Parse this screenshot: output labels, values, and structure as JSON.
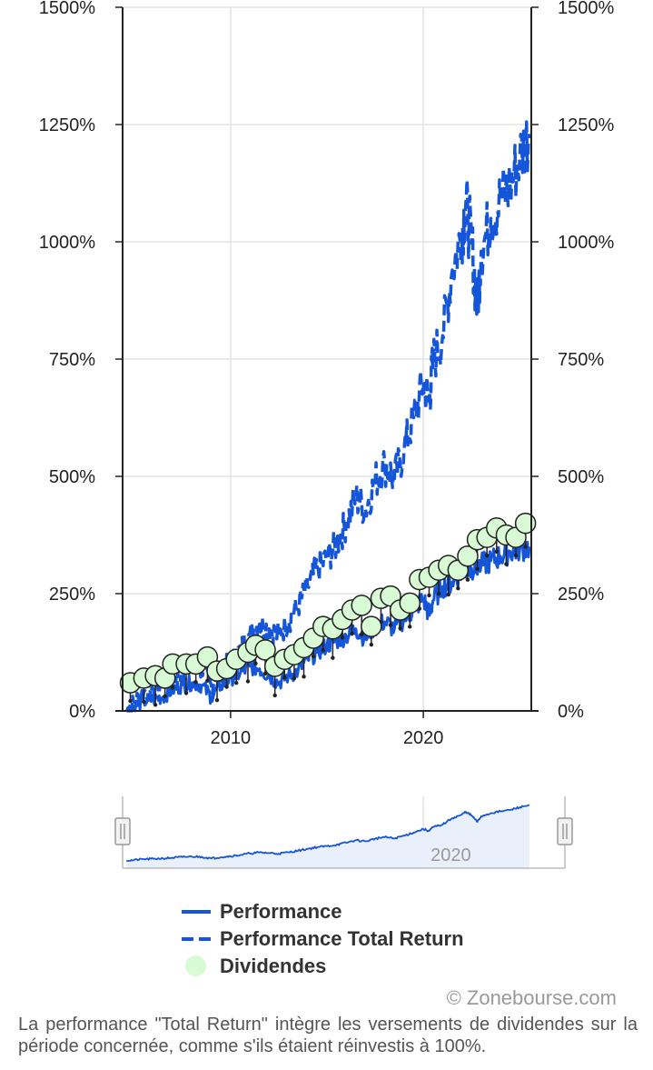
{
  "chart_data": {
    "type": "line",
    "x_ticks": [
      "2010",
      "2020"
    ],
    "y_ticks": [
      "0%",
      "250%",
      "500%",
      "750%",
      "1000%",
      "1250%",
      "1500%"
    ],
    "ylim": [
      0,
      1500
    ],
    "xlim": [
      2004.4,
      2025.6
    ],
    "grid": true,
    "legend_position": "bottom",
    "series": [
      {
        "name": "Performance",
        "style": "solid",
        "color": "#1455d9",
        "x": [
          2004.6,
          2005.0,
          2005.5,
          2006.0,
          2006.5,
          2007.0,
          2007.5,
          2008.0,
          2008.5,
          2009.0,
          2009.5,
          2010.0,
          2010.5,
          2011.0,
          2011.5,
          2012.0,
          2012.5,
          2013.0,
          2013.5,
          2014.0,
          2014.5,
          2015.0,
          2015.5,
          2016.0,
          2016.5,
          2017.0,
          2017.5,
          2018.0,
          2018.5,
          2019.0,
          2019.5,
          2020.0,
          2020.3,
          2020.5,
          2021.0,
          2021.5,
          2022.0,
          2022.5,
          2023.0,
          2023.5,
          2024.0,
          2024.5,
          2025.0,
          2025.5
        ],
        "values": [
          0,
          10,
          20,
          25,
          30,
          45,
          55,
          60,
          55,
          30,
          55,
          70,
          80,
          95,
          90,
          75,
          60,
          75,
          85,
          110,
          125,
          140,
          150,
          160,
          175,
          155,
          180,
          190,
          175,
          195,
          215,
          240,
          205,
          235,
          265,
          275,
          295,
          305,
          310,
          320,
          330,
          340,
          345,
          350
        ]
      },
      {
        "name": "Performance Total Return",
        "style": "dashed",
        "color": "#1455d9",
        "x": [
          2004.6,
          2005.0,
          2005.5,
          2006.0,
          2006.5,
          2007.0,
          2007.5,
          2008.0,
          2008.5,
          2009.0,
          2009.5,
          2010.0,
          2010.5,
          2011.0,
          2011.5,
          2012.0,
          2012.5,
          2013.0,
          2013.5,
          2014.0,
          2014.5,
          2015.0,
          2015.5,
          2016.0,
          2016.5,
          2017.0,
          2017.5,
          2018.0,
          2018.5,
          2019.0,
          2019.5,
          2020.0,
          2020.3,
          2020.5,
          2021.0,
          2021.5,
          2022.0,
          2022.2,
          2022.5,
          2022.8,
          2023.0,
          2023.5,
          2024.0,
          2024.5,
          2025.0,
          2025.5
        ],
        "values": [
          0,
          20,
          40,
          45,
          55,
          70,
          85,
          95,
          90,
          55,
          85,
          105,
          130,
          165,
          185,
          175,
          160,
          190,
          225,
          265,
          305,
          325,
          355,
          400,
          455,
          430,
          490,
          525,
          495,
          555,
          625,
          700,
          660,
          745,
          800,
          940,
          1020,
          1080,
          1000,
          860,
          980,
          1050,
          1090,
          1120,
          1180,
          1230
        ]
      },
      {
        "name": "Dividendes",
        "style": "markers",
        "color": "#d8fbd6",
        "x": [
          2004.8,
          2005.5,
          2006.1,
          2006.6,
          2007.0,
          2007.7,
          2008.2,
          2008.8,
          2009.3,
          2009.8,
          2010.3,
          2010.9,
          2011.3,
          2011.8,
          2012.3,
          2012.8,
          2013.3,
          2013.8,
          2014.3,
          2014.8,
          2015.3,
          2015.8,
          2016.3,
          2016.8,
          2017.3,
          2017.8,
          2018.3,
          2018.8,
          2019.3,
          2019.8,
          2020.3,
          2020.8,
          2021.3,
          2021.8,
          2022.3,
          2022.8,
          2023.3,
          2023.8,
          2024.3,
          2024.8,
          2025.3
        ],
        "values": [
          60,
          70,
          75,
          70,
          100,
          100,
          100,
          115,
          85,
          90,
          110,
          125,
          140,
          130,
          95,
          110,
          120,
          135,
          155,
          180,
          175,
          195,
          215,
          225,
          180,
          240,
          245,
          215,
          230,
          280,
          285,
          300,
          310,
          300,
          330,
          365,
          370,
          390,
          375,
          370,
          400
        ]
      }
    ]
  },
  "navigator": {
    "tick_label": "2020"
  },
  "legend": {
    "items": [
      {
        "label": "Performance",
        "symbol": "solid-line"
      },
      {
        "label": "Performance Total Return",
        "symbol": "dashed-line"
      },
      {
        "label": "Dividendes",
        "symbol": "circle"
      }
    ]
  },
  "credits": "© Zonebourse.com",
  "note": "La performance \"Total Return\" intègre les versements de dividendes sur la période concernée, comme s'ils étaient réinvestis à 100%.",
  "colors": {
    "line": "#1455d9",
    "dividend_fill": "#d8fbd6",
    "grid": "#e4e4e4",
    "navigator_fill": "#e9f0fb"
  }
}
